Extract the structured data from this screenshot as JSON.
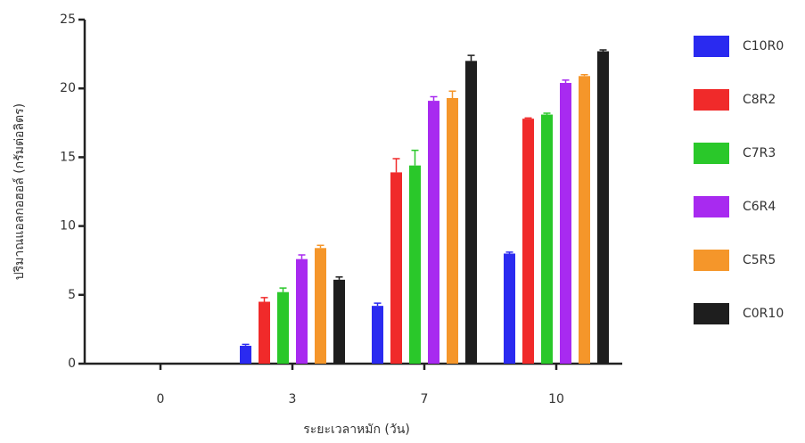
{
  "chart_data": {
    "type": "bar",
    "y_label": "ปริมาณแอลกอฮอล์ (กรัมต่อลิตร)",
    "x_label": "ระยะเวลาหมัก (วัน)",
    "categories": [
      "0",
      "3",
      "7",
      "10"
    ],
    "series": [
      {
        "name": "C10R0",
        "color": "#2a2af0",
        "values": [
          null,
          1.3,
          4.2,
          8.0
        ],
        "errors": [
          null,
          0.1,
          0.2,
          0.1
        ]
      },
      {
        "name": "C8R2",
        "color": "#f02a2a",
        "values": [
          null,
          4.5,
          13.9,
          17.8
        ],
        "errors": [
          null,
          0.3,
          1.0,
          0.05
        ]
      },
      {
        "name": "C7R3",
        "color": "#2ac82a",
        "values": [
          null,
          5.2,
          14.4,
          18.1
        ],
        "errors": [
          null,
          0.3,
          1.1,
          0.1
        ]
      },
      {
        "name": "C6R4",
        "color": "#a82af0",
        "values": [
          null,
          7.6,
          19.1,
          20.4
        ],
        "errors": [
          null,
          0.3,
          0.3,
          0.2
        ]
      },
      {
        "name": "C5R5",
        "color": "#f5962a",
        "values": [
          null,
          8.4,
          19.3,
          20.9
        ],
        "errors": [
          null,
          0.2,
          0.5,
          0.1
        ]
      },
      {
        "name": "C0R10",
        "color": "#1e1e1e",
        "values": [
          null,
          6.1,
          22.0,
          22.7
        ],
        "errors": [
          null,
          0.2,
          0.4,
          0.1
        ]
      }
    ],
    "ylim": [
      0,
      25
    ],
    "yticks": [
      0,
      5,
      10,
      15,
      20,
      25
    ]
  }
}
